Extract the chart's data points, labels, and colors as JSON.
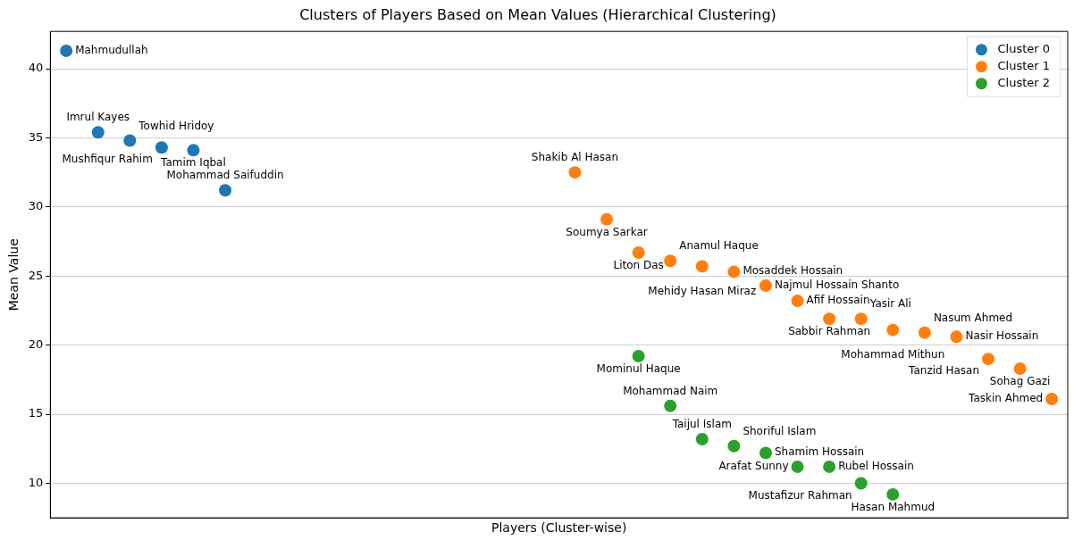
{
  "chart_data": {
    "type": "scatter",
    "title": "Clusters of Players Based on Mean Values (Hierarchical Clustering)",
    "xlabel": "Players (Cluster-wise)",
    "ylabel": "Mean Value",
    "categories": [
      null,
      null,
      null,
      null,
      null,
      null,
      null,
      null,
      null,
      null,
      null,
      null,
      null,
      null,
      null,
      null,
      null,
      null,
      null,
      null,
      null,
      null,
      null,
      null,
      null,
      null,
      null,
      null,
      null,
      null,
      null,
      null
    ],
    "series": [
      {
        "name": "Cluster 0",
        "color": "#1f77b4",
        "values": [
          41.3,
          35.4,
          34.8,
          34.3,
          34.1,
          31.2,
          null,
          null,
          null,
          null,
          null,
          null,
          null,
          null,
          null,
          null,
          null,
          null,
          null,
          null,
          null,
          null,
          null,
          null,
          null,
          null,
          null,
          null,
          null,
          null,
          null,
          null
        ],
        "value_labels": [
          "Mahmudullah",
          "Imrul Kayes",
          "Towhid Hridoy",
          "Mushfiqur Rahim",
          "Tamim Iqbal",
          "Mohammad Saifuddin",
          null,
          null,
          null,
          null,
          null,
          null,
          null,
          null,
          null,
          null,
          null,
          null,
          null,
          null,
          null,
          null,
          null,
          null,
          null,
          null,
          null,
          null,
          null,
          null,
          null,
          null
        ]
      },
      {
        "name": "Cluster 1",
        "color": "#ff7f0e",
        "values": [
          null,
          null,
          null,
          null,
          null,
          null,
          null,
          null,
          null,
          null,
          null,
          null,
          null,
          null,
          null,
          null,
          32.5,
          29.1,
          26.7,
          26.1,
          25.7,
          25.3,
          24.3,
          23.2,
          21.9,
          21.9,
          21.1,
          20.9,
          20.6,
          19.0,
          18.3,
          16.1
        ],
        "value_labels": [
          null,
          null,
          null,
          null,
          null,
          null,
          null,
          null,
          null,
          null,
          null,
          null,
          null,
          null,
          null,
          null,
          "Shakib Al Hasan",
          "Soumya Sarkar",
          "Liton Das",
          "Anamul Haque",
          "Mehidy Hasan Miraz",
          "Mosaddek Hossain",
          "Najmul Hossain Shanto",
          "Afif Hossain",
          "Sabbir Rahman",
          "Yasir Ali",
          "Mohammad Mithun",
          "Nasum Ahmed",
          "Nasir Hossain",
          "Tanzid Hasan",
          "Sohag Gazi",
          "Taskin Ahmed"
        ]
      },
      {
        "name": "Cluster 2",
        "color": "#2ca02c",
        "values": [
          null,
          null,
          null,
          null,
          null,
          null,
          null,
          null,
          null,
          null,
          null,
          null,
          null,
          null,
          null,
          null,
          null,
          null,
          19.2,
          15.6,
          13.2,
          12.7,
          12.2,
          11.2,
          11.2,
          10.0,
          9.2,
          null,
          null,
          null,
          null,
          null
        ],
        "value_labels": [
          null,
          null,
          null,
          null,
          null,
          null,
          null,
          null,
          null,
          null,
          null,
          null,
          null,
          null,
          null,
          null,
          null,
          null,
          "Mominul Haque",
          "Mohammad Naim",
          "Taijul Islam",
          "Shoriful Islam",
          "Shamim Hossain",
          "Arafat Sunny",
          "Rubel Hossain",
          "Mustafizur Rahman",
          "Hasan Mahmud",
          null,
          null,
          null,
          null,
          null
        ]
      }
    ],
    "ylim": [
      7.5,
      42.7
    ],
    "yticks": [
      10,
      15,
      20,
      25,
      30,
      35,
      40
    ],
    "tick_labels": "y",
    "grid": "y",
    "legend": "top right",
    "marker": "circle"
  }
}
